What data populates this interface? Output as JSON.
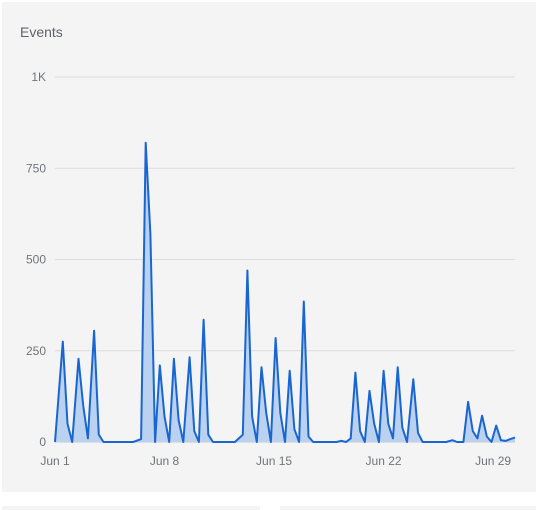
{
  "card": {
    "title": "Events"
  },
  "chart_data": {
    "type": "area",
    "title": "Events",
    "xlabel": "",
    "ylabel": "",
    "ylim": [
      0,
      1000
    ],
    "y_ticks": [
      {
        "value": 0,
        "label": "0"
      },
      {
        "value": 250,
        "label": "250"
      },
      {
        "value": 500,
        "label": "500"
      },
      {
        "value": 750,
        "label": "750"
      },
      {
        "value": 1000,
        "label": "1K"
      }
    ],
    "x_ticks": [
      {
        "value": 0,
        "label": "Jun 1"
      },
      {
        "value": 7,
        "label": "Jun 8"
      },
      {
        "value": 14,
        "label": "Jun 15"
      },
      {
        "value": 21,
        "label": "Jun 22"
      },
      {
        "value": 28,
        "label": "Jun 29"
      }
    ],
    "points": [
      [
        0.0,
        0
      ],
      [
        0.5,
        275
      ],
      [
        0.8,
        50
      ],
      [
        1.1,
        0
      ],
      [
        1.5,
        228
      ],
      [
        1.8,
        100
      ],
      [
        2.1,
        10
      ],
      [
        2.5,
        305
      ],
      [
        2.8,
        20
      ],
      [
        3.1,
        0
      ],
      [
        3.5,
        0
      ],
      [
        4.0,
        0
      ],
      [
        4.5,
        0
      ],
      [
        5.0,
        0
      ],
      [
        5.5,
        8
      ],
      [
        5.8,
        820
      ],
      [
        6.1,
        570
      ],
      [
        6.4,
        0
      ],
      [
        6.7,
        210
      ],
      [
        7.0,
        70
      ],
      [
        7.3,
        0
      ],
      [
        7.6,
        228
      ],
      [
        7.9,
        60
      ],
      [
        8.2,
        0
      ],
      [
        8.6,
        232
      ],
      [
        8.9,
        30
      ],
      [
        9.2,
        0
      ],
      [
        9.5,
        335
      ],
      [
        9.8,
        20
      ],
      [
        10.1,
        0
      ],
      [
        10.5,
        0
      ],
      [
        11.0,
        0
      ],
      [
        11.5,
        0
      ],
      [
        12.0,
        20
      ],
      [
        12.3,
        470
      ],
      [
        12.6,
        70
      ],
      [
        12.9,
        0
      ],
      [
        13.2,
        205
      ],
      [
        13.5,
        80
      ],
      [
        13.8,
        0
      ],
      [
        14.1,
        285
      ],
      [
        14.4,
        80
      ],
      [
        14.7,
        0
      ],
      [
        15.0,
        195
      ],
      [
        15.3,
        35
      ],
      [
        15.6,
        0
      ],
      [
        15.9,
        385
      ],
      [
        16.2,
        15
      ],
      [
        16.5,
        0
      ],
      [
        17.0,
        0
      ],
      [
        17.5,
        0
      ],
      [
        18.0,
        0
      ],
      [
        18.3,
        3
      ],
      [
        18.6,
        0
      ],
      [
        18.9,
        10
      ],
      [
        19.2,
        190
      ],
      [
        19.5,
        30
      ],
      [
        19.8,
        0
      ],
      [
        20.1,
        140
      ],
      [
        20.4,
        50
      ],
      [
        20.7,
        0
      ],
      [
        21.0,
        195
      ],
      [
        21.3,
        50
      ],
      [
        21.6,
        10
      ],
      [
        21.9,
        205
      ],
      [
        22.2,
        40
      ],
      [
        22.5,
        0
      ],
      [
        22.9,
        172
      ],
      [
        23.2,
        25
      ],
      [
        23.5,
        0
      ],
      [
        24.0,
        0
      ],
      [
        24.5,
        0
      ],
      [
        25.0,
        0
      ],
      [
        25.4,
        5
      ],
      [
        25.7,
        0
      ],
      [
        26.1,
        0
      ],
      [
        26.4,
        110
      ],
      [
        26.7,
        30
      ],
      [
        27.0,
        10
      ],
      [
        27.3,
        72
      ],
      [
        27.6,
        15
      ],
      [
        27.9,
        0
      ],
      [
        28.2,
        45
      ],
      [
        28.5,
        5
      ],
      [
        28.8,
        3
      ],
      [
        29.1,
        8
      ],
      [
        29.4,
        12
      ]
    ],
    "line_color": "#1a66d0",
    "fill_color": "#bad1ef",
    "grid": true
  }
}
